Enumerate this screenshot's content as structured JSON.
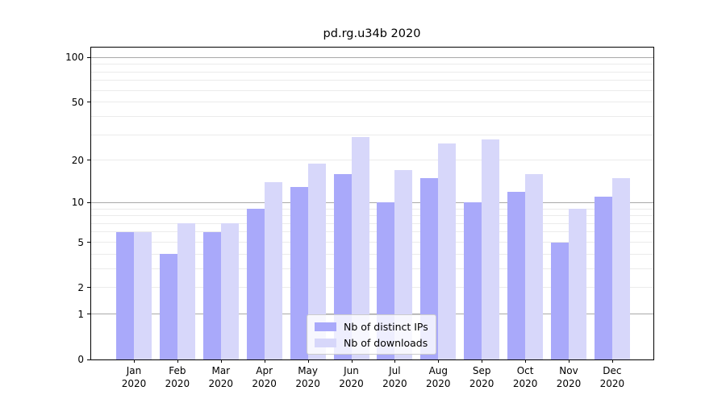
{
  "figure": {
    "title": "pd.rg.u34b 2020"
  },
  "chart_data": {
    "type": "bar",
    "title": "pd.rg.u34b 2020",
    "yscale": "log1p",
    "ylim": [
      0,
      120
    ],
    "grid": true,
    "legend_position": "lower center",
    "categories": [
      "Jan 2020",
      "Feb 2020",
      "Mar 2020",
      "Apr 2020",
      "May 2020",
      "Jun 2020",
      "Jul 2020",
      "Aug 2020",
      "Sep 2020",
      "Oct 2020",
      "Nov 2020",
      "Dec 2020"
    ],
    "x_tick_months": [
      "Jan",
      "Feb",
      "Mar",
      "Apr",
      "May",
      "Jun",
      "Jul",
      "Aug",
      "Sep",
      "Oct",
      "Nov",
      "Dec"
    ],
    "x_tick_year": "2020",
    "y_tick_values": [
      0,
      1,
      2,
      5,
      10,
      20,
      50,
      100
    ],
    "y_major_grid": [
      1,
      10,
      100
    ],
    "y_minor_grid": [
      2,
      3,
      4,
      5,
      6,
      7,
      8,
      9,
      20,
      30,
      40,
      50,
      60,
      70,
      80,
      90
    ],
    "series": [
      {
        "name": "Nb of distinct IPs",
        "color": "#a9a9fa",
        "values": [
          6,
          4,
          6,
          9,
          13,
          16,
          10,
          15,
          10,
          12,
          5,
          11
        ]
      },
      {
        "name": "Nb of downloads",
        "color": "#d7d7fa",
        "values": [
          6,
          7,
          7,
          14,
          19,
          29,
          17,
          26,
          28,
          16,
          9,
          15
        ]
      }
    ]
  },
  "colors": {
    "grid_major": "#a9a9a9",
    "grid_minor": "#ebebeb",
    "axis": "#000000",
    "text": "#000000",
    "background": "#ffffff",
    "legend_border": "#cccccc"
  }
}
